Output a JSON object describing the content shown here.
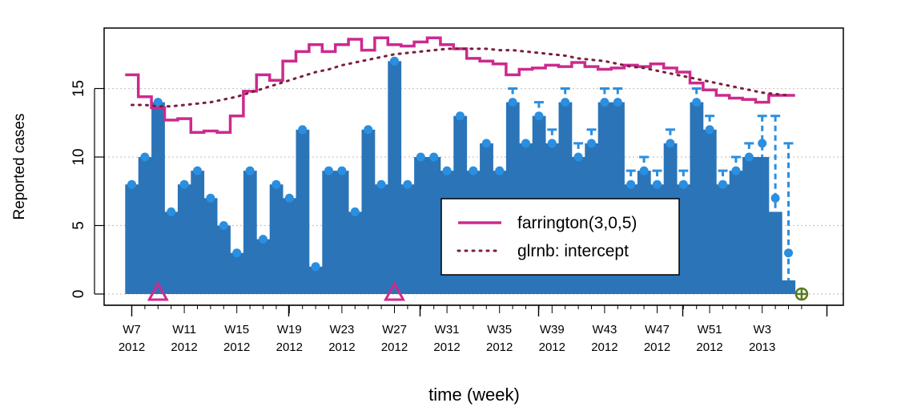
{
  "chart_data": {
    "type": "bar",
    "title": "",
    "xlabel": "time (week)",
    "ylabel": "Reported cases",
    "ylim": [
      0,
      19.5
    ],
    "yticks": [
      0,
      5,
      10,
      15
    ],
    "grid": "horizontal dotted",
    "week_range": [
      "W7 2012",
      "W5 2013"
    ],
    "x_tick_labels": [
      {
        "week": "W7",
        "year": "2012"
      },
      {
        "week": "W11",
        "year": "2012"
      },
      {
        "week": "W15",
        "year": "2012"
      },
      {
        "week": "W19",
        "year": "2012"
      },
      {
        "week": "W23",
        "year": "2012"
      },
      {
        "week": "W27",
        "year": "2012"
      },
      {
        "week": "W31",
        "year": "2012"
      },
      {
        "week": "W35",
        "year": "2012"
      },
      {
        "week": "W39",
        "year": "2012"
      },
      {
        "week": "W43",
        "year": "2012"
      },
      {
        "week": "W47",
        "year": "2012"
      },
      {
        "week": "W51",
        "year": "2012"
      },
      {
        "week": "W3",
        "year": "2013"
      }
    ],
    "observed": [
      8,
      10,
      14,
      6,
      8,
      9,
      7,
      5,
      3,
      9,
      4,
      8,
      7,
      12,
      2,
      9,
      9,
      6,
      12,
      8,
      17,
      8,
      10,
      10,
      9,
      13,
      9,
      11,
      9,
      14,
      11,
      13,
      11,
      14,
      10,
      11,
      14,
      14,
      8,
      9,
      8,
      11,
      8,
      14,
      12,
      8,
      9,
      10,
      10,
      6,
      1
    ],
    "observed_upper": [
      8,
      10,
      14,
      6,
      8,
      9,
      7,
      5,
      3,
      9,
      4,
      8,
      7,
      12,
      2,
      9,
      9,
      6,
      12,
      8,
      17,
      8,
      10,
      10,
      9,
      13,
      9,
      11,
      9,
      15,
      11,
      14,
      12,
      15,
      11,
      12,
      15,
      15,
      9,
      10,
      9,
      12,
      9,
      15,
      13,
      9,
      10,
      11,
      13,
      13,
      11
    ],
    "nowcast_points": [
      8,
      10,
      14,
      6,
      8,
      9,
      7,
      5,
      3,
      9,
      4,
      8,
      7,
      12,
      2,
      9,
      9,
      6,
      12,
      8,
      17,
      8,
      10,
      10,
      9,
      13,
      9,
      11,
      9,
      14,
      11,
      13,
      11,
      14,
      10,
      11,
      14,
      14,
      8,
      9,
      8,
      11,
      8,
      14,
      12,
      8,
      9,
      10,
      11,
      7,
      3
    ],
    "alarm_weeks": [
      2,
      20
    ],
    "alarm_color": "#cc2a8e",
    "zero_week_marker_index": 51,
    "zero_week_marker_color": "#5a7a1e",
    "bar_color": "#2b74b8",
    "point_color": "#2a8fe0",
    "series": [
      {
        "name": "farrington(3,0,5)",
        "style": "solid-step",
        "color": "#cc2a8e",
        "values": [
          16,
          14.4,
          13.6,
          12.7,
          12.8,
          11.8,
          11.9,
          11.8,
          13,
          14.8,
          16,
          15.6,
          17,
          17.7,
          18.2,
          17.7,
          18.2,
          18.6,
          17.8,
          18.7,
          18.2,
          18.1,
          18.4,
          18.7,
          18.2,
          17.9,
          17.2,
          17,
          16.8,
          16,
          16.4,
          16.5,
          16.7,
          16.6,
          16.9,
          16.6,
          16.4,
          16.5,
          16.7,
          16.6,
          16.8,
          16.5,
          16.2,
          15.4,
          14.9,
          14.5,
          14.3,
          14.2,
          14.0,
          14.5,
          14.5
        ]
      },
      {
        "name": "glrnb: intercept",
        "style": "dotted",
        "color": "#7a1f3b",
        "values": [
          13.8,
          13.8,
          13.7,
          13.7,
          13.8,
          13.9,
          14.0,
          14.2,
          14.4,
          14.7,
          15.0,
          15.3,
          15.6,
          15.9,
          16.2,
          16.4,
          16.7,
          16.9,
          17.1,
          17.3,
          17.5,
          17.6,
          17.7,
          17.8,
          17.9,
          17.9,
          17.9,
          17.9,
          17.8,
          17.8,
          17.7,
          17.6,
          17.5,
          17.4,
          17.2,
          17.1,
          17.0,
          16.8,
          16.6,
          16.5,
          16.3,
          16.1,
          15.9,
          15.7,
          15.5,
          15.3,
          15.1,
          14.9,
          14.7,
          14.6,
          14.5
        ]
      }
    ],
    "legend_position": "center-right"
  }
}
